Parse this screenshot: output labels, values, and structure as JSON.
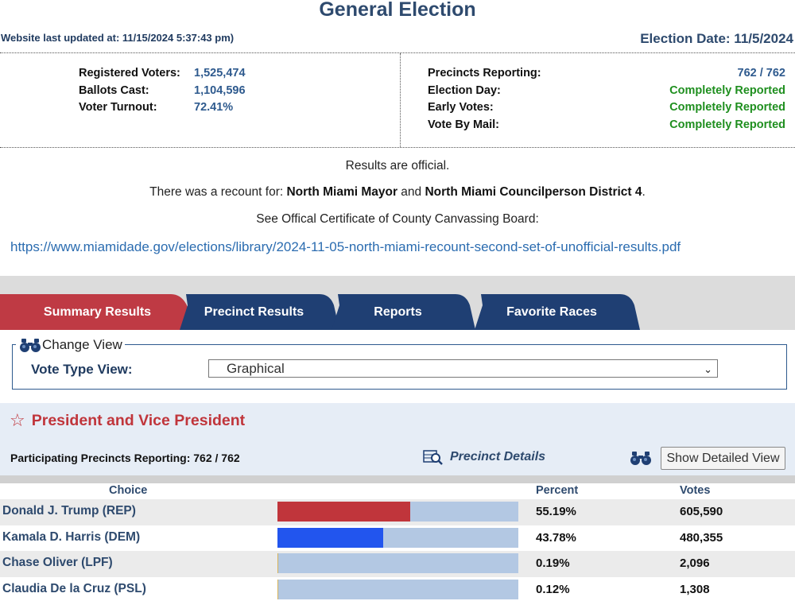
{
  "header": {
    "title": "General Election",
    "last_updated": "Website last updated at: 11/15/2024 5:37:43 pm)",
    "election_date": "Election Date: 11/5/2024"
  },
  "stats": {
    "registered_label": "Registered Voters:",
    "registered_value": "1,525,474",
    "ballots_label": "Ballots Cast:",
    "ballots_value": "1,104,596",
    "turnout_label": "Voter Turnout:",
    "turnout_value": "72.41%",
    "precincts_label": "Precincts Reporting:",
    "precincts_value": "762 / 762",
    "election_day_label": "Election Day:",
    "election_day_value": "Completely Reported",
    "early_label": "Early Votes:",
    "early_value": "Completely Reported",
    "mail_label": "Vote By Mail:",
    "mail_value": "Completely Reported"
  },
  "notice": {
    "official": "Results are official.",
    "recount_prefix": "There was a recount for: ",
    "recount_race_1": "North Miami Mayor",
    "recount_and": " and ",
    "recount_race_2": "North Miami Councilperson District 4",
    "recount_suffix": ".",
    "certificate": "See Offical Certificate of County Canvassing Board:",
    "link": "https://www.miamidade.gov/elections/library/2024-11-05-north-miami-recount-second-set-of-unofficial-results.pdf"
  },
  "tabs": [
    {
      "label": "Summary Results",
      "active": true
    },
    {
      "label": "Precinct Results",
      "active": false
    },
    {
      "label": "Reports",
      "active": false
    },
    {
      "label": "Favorite Races",
      "active": false
    }
  ],
  "change_view": {
    "legend": "Change View",
    "vote_type_label": "Vote Type View:",
    "selected": "Graphical"
  },
  "race": {
    "title": "President and Vice President",
    "reporting": "Participating Precincts Reporting: 762 / 762",
    "precinct_details": "Precinct Details",
    "detailed_view_button": "Show Detailed View",
    "columns": {
      "choice": "Choice",
      "percent": "Percent",
      "votes": "Votes"
    },
    "choices": [
      {
        "name": "Donald J. Trump (REP)",
        "percent": "55.19%",
        "votes": "605,590",
        "share": 0.5519,
        "color": "#c0353b"
      },
      {
        "name": "Kamala D. Harris (DEM)",
        "percent": "43.78%",
        "votes": "480,355",
        "share": 0.4378,
        "color": "#2255ee"
      },
      {
        "name": "Chase Oliver (LPF)",
        "percent": "0.19%",
        "votes": "2,096",
        "share": 0.0019,
        "color": "#d6b25a"
      },
      {
        "name": "Claudia De la Cruz (PSL)",
        "percent": "0.12%",
        "votes": "1,308",
        "share": 0.0012,
        "color": "#d6b25a"
      }
    ]
  },
  "colors": {
    "tab_active": "#bf3a44",
    "tab_inactive": "#1f3f73",
    "accent_red": "#c0353b",
    "navy": "#2e4a6e",
    "green": "#1f8f1f"
  }
}
